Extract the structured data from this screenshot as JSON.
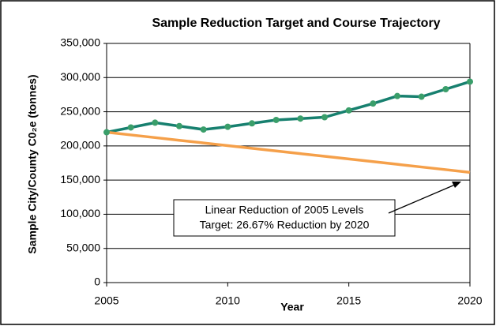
{
  "chart_data": {
    "type": "line",
    "title": "Sample Reduction Target and Course Trajectory",
    "xlabel": "Year",
    "ylabel": "Sample City/County C0₂e (tonnes)",
    "annotation": [
      "Linear Reduction of 2005 Levels",
      "Target: 26.67% Reduction by 2020"
    ],
    "x": [
      2005,
      2006,
      2007,
      2008,
      2009,
      2010,
      2011,
      2012,
      2013,
      2014,
      2015,
      2016,
      2017,
      2018,
      2019,
      2020
    ],
    "series": [
      {
        "color": "#17806f",
        "marker_color": "#3a9e6a",
        "markers": true,
        "values": [
          220000,
          227000,
          234000,
          229000,
          224000,
          228000,
          233000,
          238000,
          240000,
          242000,
          252000,
          262000,
          273000,
          272000,
          283000,
          294000
        ]
      },
      {
        "color": "#f5a04a",
        "markers": false,
        "values": [
          220000,
          216089,
          212178,
          208267,
          204356,
          200445,
          196535,
          192624,
          188713,
          184802,
          180891,
          176980,
          173069,
          169158,
          165248,
          161337
        ]
      }
    ],
    "xlim": [
      2005,
      2020
    ],
    "xticks": [
      2005,
      2010,
      2015,
      2020
    ],
    "ylim": [
      0,
      350000
    ],
    "yticks": [
      0,
      {
        "value": 50000,
        "label": "50,000"
      },
      {
        "value": 100000,
        "label": "100,000"
      },
      {
        "value": 150000,
        "label": "150,000"
      },
      {
        "value": 200000,
        "label": "200,000"
      },
      {
        "value": 250000,
        "label": "250,000"
      },
      {
        "value": 300000,
        "label": "300,000"
      },
      {
        "value": 350000,
        "label": "350,000"
      }
    ],
    "grid": true
  }
}
